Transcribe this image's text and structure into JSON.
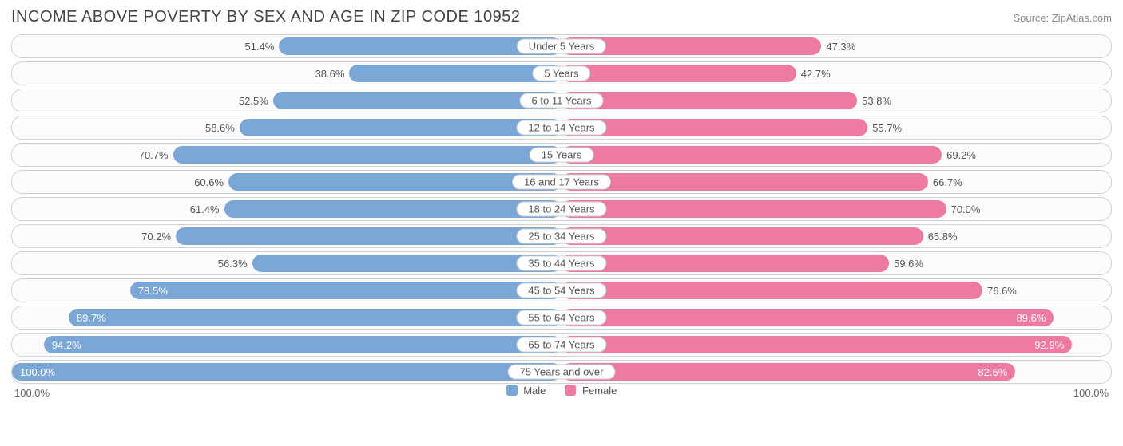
{
  "title": "INCOME ABOVE POVERTY BY SEX AND AGE IN ZIP CODE 10952",
  "source": "Source: ZipAtlas.com",
  "axis_left": "100.0%",
  "axis_right": "100.0%",
  "legend": {
    "male": "Male",
    "female": "Female"
  },
  "colors": {
    "male": "#7ba7d7",
    "female": "#ed7ba1",
    "row_border": "#d0d0d0",
    "text": "#555555"
  },
  "label_threshold_inside": 78,
  "rows": [
    {
      "category": "Under 5 Years",
      "male": 51.4,
      "female": 47.3
    },
    {
      "category": "5 Years",
      "male": 38.6,
      "female": 42.7
    },
    {
      "category": "6 to 11 Years",
      "male": 52.5,
      "female": 53.8
    },
    {
      "category": "12 to 14 Years",
      "male": 58.6,
      "female": 55.7
    },
    {
      "category": "15 Years",
      "male": 70.7,
      "female": 69.2
    },
    {
      "category": "16 and 17 Years",
      "male": 60.6,
      "female": 66.7
    },
    {
      "category": "18 to 24 Years",
      "male": 61.4,
      "female": 70.0
    },
    {
      "category": "25 to 34 Years",
      "male": 70.2,
      "female": 65.8
    },
    {
      "category": "35 to 44 Years",
      "male": 56.3,
      "female": 59.6
    },
    {
      "category": "45 to 54 Years",
      "male": 78.5,
      "female": 76.6
    },
    {
      "category": "55 to 64 Years",
      "male": 89.7,
      "female": 89.6
    },
    {
      "category": "65 to 74 Years",
      "male": 94.2,
      "female": 92.9
    },
    {
      "category": "75 Years and over",
      "male": 100.0,
      "female": 82.6
    }
  ]
}
